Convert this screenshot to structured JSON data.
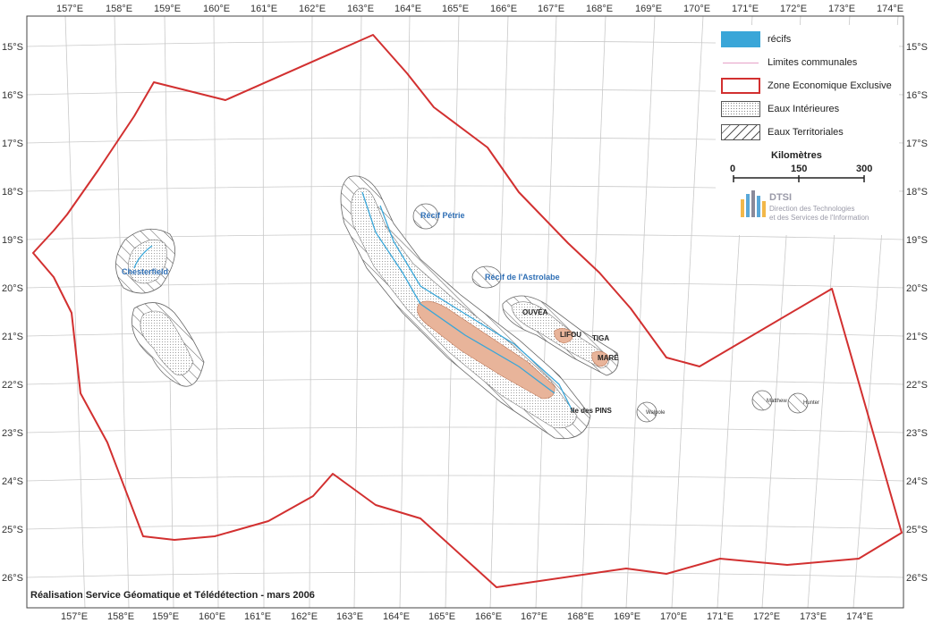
{
  "map": {
    "lon_labels": [
      "157°E",
      "158°E",
      "159°E",
      "160°E",
      "161°E",
      "162°E",
      "163°E",
      "164°E",
      "165°E",
      "166°E",
      "167°E",
      "168°E",
      "169°E",
      "170°E",
      "171°E",
      "172°E",
      "173°E",
      "174°E"
    ],
    "lat_labels": [
      "15°S",
      "16°S",
      "17°S",
      "18°S",
      "19°S",
      "20°S",
      "21°S",
      "22°S",
      "23°S",
      "24°S",
      "25°S",
      "26°S"
    ],
    "place_labels": {
      "chesterfield": "Chesterfield",
      "recif_petrie": "Récif Pétrie",
      "recif_astrolabe": "Récif de l'Astrolabe",
      "ouvea": "OUVÉA",
      "lifou": "LIFOU",
      "tiga": "TIGA",
      "mare": "MARÉ",
      "ile_des_pins": "Ile des PINS",
      "walpole": "Walpole",
      "matthew": "Matthew",
      "hunter": "Hunter"
    },
    "colors": {
      "eez": "#d23030",
      "reef": "#3aa6d8",
      "land": "#e8b49a",
      "communal_limits": "#e6a0c8"
    }
  },
  "legend": {
    "recifs": "récifs",
    "limites": "Limites communales",
    "zee": "Zone Economique Exclusive",
    "eaux_int": "Eaux Intérieures",
    "eaux_terr": "Eaux Territoriales"
  },
  "scale": {
    "title": "Kilomètres",
    "labels": [
      "0",
      "150",
      "300"
    ]
  },
  "logo": {
    "name": "DTSI",
    "line1": "Direction des Technologies",
    "line2": "et des Services de l'Information"
  },
  "credit": "Réalisation Service Géomatique et Télédétection - mars 2006"
}
